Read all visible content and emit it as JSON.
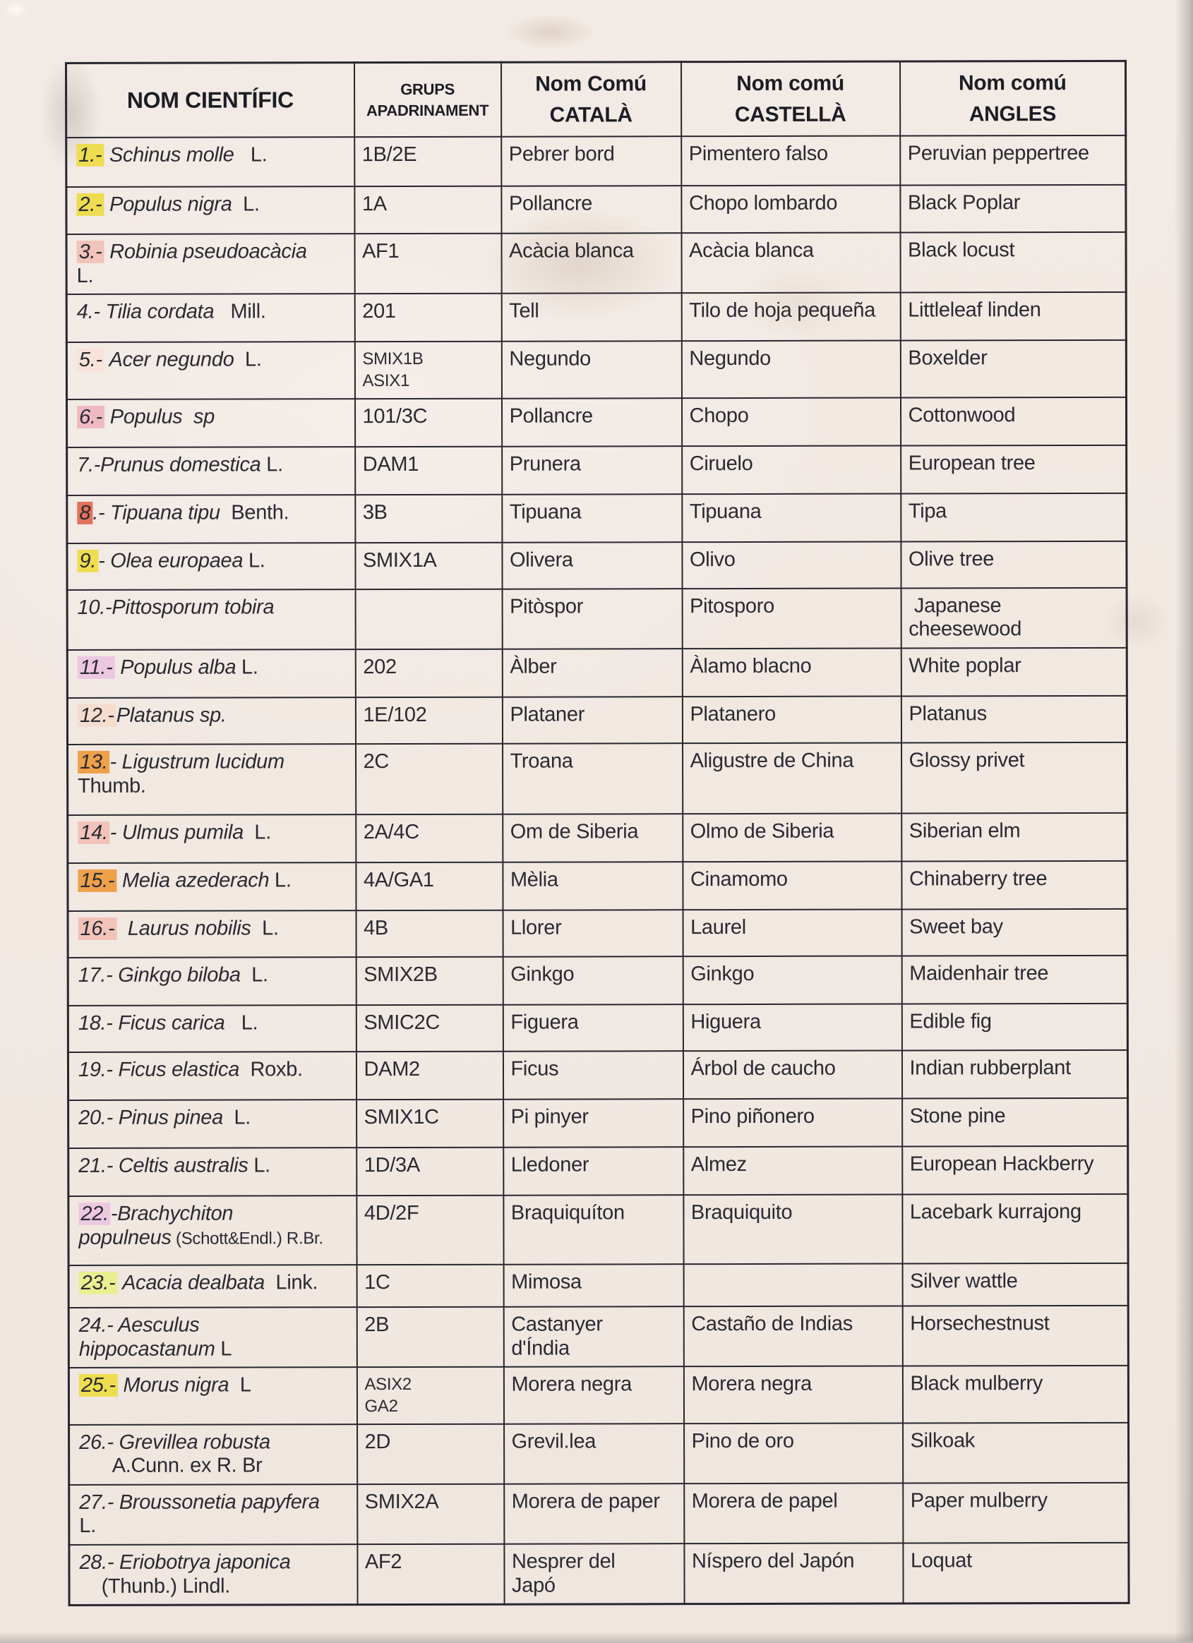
{
  "paper_color": "#f1e9e3",
  "ink_color": "#2a2a31",
  "table_line_color": "#28262e",
  "table": {
    "headers": [
      {
        "label": "NOM CIENTÍFIC"
      },
      {
        "label": "GRUPS\nAPADRINAMENT"
      },
      {
        "label": "Nom Comú\nCATALÀ"
      },
      {
        "label": "Nom comú\nCASTELLÀ"
      },
      {
        "label": "Nom comú\nANGLES"
      }
    ],
    "highlight_palette": {
      "yellow": "#eedd50",
      "yellow-green": "#e9ee90",
      "orange": "#efa04a",
      "red": "#e4715a",
      "pink": "#f2c3b9",
      "rose": "#efb9c4",
      "lavender": "#ecc8e0",
      "peach": "#f6dccd",
      "faint-peach": "#f8e3da"
    },
    "rows": [
      {
        "num": "1.-",
        "hl": "yellow",
        "sci": [
          {
            "t": " Schinus molle",
            "i": true
          },
          {
            "t": "   L."
          }
        ],
        "group": "1B/2E",
        "catala": "Pebrer bord",
        "castella": "Pimentero falso",
        "angles": "Peruvian peppertree"
      },
      {
        "num": "2.-",
        "hl": "yellow",
        "sci": [
          {
            "t": " Populus nigra",
            "i": true
          },
          {
            "t": "  L."
          }
        ],
        "group": "1A",
        "catala": "Pollancre",
        "castella": "Chopo lombardo",
        "angles": "Black Poplar"
      },
      {
        "num": "3.-",
        "hl": "pink",
        "sci": [
          {
            "t": " Robinia pseudoacàcia",
            "i": true
          },
          {
            "t": "\nL."
          }
        ],
        "group": "AF1",
        "catala": "Acàcia blanca",
        "castella": "Acàcia blanca",
        "angles": "Black locust"
      },
      {
        "num": "4.-",
        "hl": null,
        "sci": [
          {
            "t": " Tilia cordata",
            "i": true
          },
          {
            "t": "   Mill."
          }
        ],
        "group": "201",
        "catala": "Tell",
        "castella": "Tilo de hoja pequeña",
        "angles": "Littleleaf linden"
      },
      {
        "num": "5.-",
        "hl": "faint-peach",
        "sci": [
          {
            "t": " Acer negundo",
            "i": true
          },
          {
            "t": "  L."
          }
        ],
        "group": "SMIX1B\nASIX1",
        "catala": "Negundo",
        "castella": "Negundo",
        "angles": "Boxelder"
      },
      {
        "num": "6.-",
        "hl": "rose",
        "sci": [
          {
            "t": " Populus  sp",
            "i": true
          }
        ],
        "group": "101/3C",
        "catala": "Pollancre",
        "castella": "Chopo",
        "angles": "Cottonwood"
      },
      {
        "num": "7.-",
        "hl": null,
        "sci": [
          {
            "t": "Prunus domestica",
            "i": true
          },
          {
            "t": " L."
          }
        ],
        "group": "DAM1",
        "catala": "Prunera",
        "castella": "Ciruelo",
        "angles": "European tree"
      },
      {
        "num": "8",
        "hl": "red",
        "sci": [
          {
            "t": ".- Tipuana tipu",
            "i": true
          },
          {
            "t": "  Benth."
          }
        ],
        "group": "3B",
        "catala": "Tipuana",
        "castella": "Tipuana",
        "angles": "Tipa"
      },
      {
        "num": "9.",
        "hl": "yellow",
        "sci": [
          {
            "t": "- Olea europaea",
            "i": true
          },
          {
            "t": " L."
          }
        ],
        "group": "SMIX1A",
        "catala": "Olivera",
        "castella": "Olivo",
        "angles": "Olive tree"
      },
      {
        "num": "10.-",
        "hl": null,
        "sci": [
          {
            "t": "Pittosporum tobira",
            "i": true
          }
        ],
        "group": "",
        "catala": "Pitòspor",
        "castella": "Pitosporo",
        "angles": " Japanese\ncheesewood"
      },
      {
        "num": "11.-",
        "hl": "lavender",
        "sci": [
          {
            "t": " Populus alba",
            "i": true
          },
          {
            "t": " L."
          }
        ],
        "group": "202",
        "catala": "Àlber",
        "castella": "Àlamo blacno",
        "angles": "White poplar"
      },
      {
        "num": "12.-",
        "hl": "peach",
        "sci": [
          {
            "t": "Platanus sp.",
            "i": true
          }
        ],
        "group": "1E/102",
        "catala": "Plataner",
        "castella": "Platanero",
        "angles": "Platanus"
      },
      {
        "num": "13.",
        "hl": "orange",
        "sci": [
          {
            "t": "- Ligustrum lucidum",
            "i": true
          },
          {
            "t": "\nThumb."
          }
        ],
        "group": "2C",
        "catala": "Troana",
        "castella": "Aligustre de China",
        "angles": "Glossy privet"
      },
      {
        "num": "14.",
        "hl": "pink",
        "sci": [
          {
            "t": "- Ulmus pumila",
            "i": true
          },
          {
            "t": "  L."
          }
        ],
        "group": "2A/4C",
        "catala": "Om de Siberia",
        "castella": "Olmo de Siberia",
        "angles": "Siberian elm"
      },
      {
        "num": "15.-",
        "hl": "orange",
        "sci": [
          {
            "t": " Melia azederach",
            "i": true
          },
          {
            "t": " L."
          }
        ],
        "group": "4A/GA1",
        "catala": "Mèlia",
        "castella": "Cinamomo",
        "angles": "Chinaberry tree"
      },
      {
        "num": "16.-",
        "hl": "pink",
        "sci": [
          {
            "t": "  Laurus nobilis",
            "i": true
          },
          {
            "t": "  L."
          }
        ],
        "group": "4B",
        "catala": "Llorer",
        "castella": "Laurel",
        "angles": "Sweet bay"
      },
      {
        "num": "17.-",
        "hl": null,
        "sci": [
          {
            "t": " Ginkgo biloba",
            "i": true
          },
          {
            "t": "  L."
          }
        ],
        "group": "SMIX2B",
        "catala": "Ginkgo",
        "castella": "Ginkgo",
        "angles": "Maidenhair tree"
      },
      {
        "num": "18.-",
        "hl": null,
        "sci": [
          {
            "t": " Ficus carica",
            "i": true
          },
          {
            "t": "   L."
          }
        ],
        "group": "SMIC2C",
        "catala": "Figuera",
        "castella": "Higuera",
        "angles": "Edible fig"
      },
      {
        "num": "19.-",
        "hl": null,
        "sci": [
          {
            "t": " Ficus elastica",
            "i": true
          },
          {
            "t": "  Roxb."
          }
        ],
        "group": "DAM2",
        "catala": "Ficus",
        "castella": "Árbol de caucho",
        "angles": "Indian rubberplant"
      },
      {
        "num": "20.-",
        "hl": null,
        "sci": [
          {
            "t": " Pinus pinea",
            "i": true
          },
          {
            "t": "  L."
          }
        ],
        "group": "SMIX1C",
        "catala": "Pi pinyer",
        "castella": "Pino piñonero",
        "angles": "Stone pine"
      },
      {
        "num": "21.-",
        "hl": null,
        "sci": [
          {
            "t": " Celtis australis",
            "i": true
          },
          {
            "t": " L."
          }
        ],
        "group": "1D/3A",
        "catala": "Lledoner",
        "castella": "Almez",
        "angles": "European Hackberry"
      },
      {
        "num": "22.",
        "hl": "lavender",
        "sci": [
          {
            "t": "-Brachychiton\npopulneus",
            "i": true
          },
          {
            "t": " (Schott&Endl.) R.Br.",
            "sm": true
          }
        ],
        "group": "4D/2F",
        "catala": "Braquiquíton",
        "castella": "Braquiquito",
        "angles": "Lacebark kurrajong"
      },
      {
        "num": "23.-",
        "hl": "yellow-green",
        "sci": [
          {
            "t": " Acacia dealbata",
            "i": true
          },
          {
            "t": "  Link."
          }
        ],
        "group": "1C",
        "catala": "Mimosa",
        "castella": "",
        "angles": "Silver wattle"
      },
      {
        "num": "24.-",
        "hl": null,
        "sci": [
          {
            "t": " Aesculus\nhippocastanum",
            "i": true
          },
          {
            "t": " L"
          }
        ],
        "group": "2B",
        "catala": "Castanyer\nd'Índia",
        "castella": "Castaño de Indias",
        "angles": "Horsechestnust"
      },
      {
        "num": "25.-",
        "hl": "yellow",
        "sci": [
          {
            "t": " Morus nigra",
            "i": true
          },
          {
            "t": "  L"
          }
        ],
        "group": "ASIX2\nGA2",
        "catala": "Morera negra",
        "castella": "Morera negra",
        "angles": "Black mulberry"
      },
      {
        "num": "26.-",
        "hl": null,
        "sci": [
          {
            "t": " Grevillea robusta",
            "i": true
          },
          {
            "t": "\n      A.Cunn. ex R. Br"
          }
        ],
        "group": "2D",
        "catala": "Grevil.lea",
        "castella": "Pino de oro",
        "angles": "Silkoak"
      },
      {
        "num": "27.-",
        "hl": null,
        "sci": [
          {
            "t": " Broussonetia papyfera",
            "i": true
          },
          {
            "t": "\nL."
          }
        ],
        "group": "SMIX2A",
        "catala": "Morera de paper",
        "castella": "Morera de papel",
        "angles": "Paper mulberry"
      },
      {
        "num": "28.-",
        "hl": null,
        "sci": [
          {
            "t": " Eriobotrya japonica",
            "i": true
          },
          {
            "t": "\n    (Thunb.) Lindl."
          }
        ],
        "group": "AF2",
        "catala": "Nesprer del\nJapó",
        "castella": "Níspero del Japón",
        "angles": "Loquat"
      }
    ]
  }
}
